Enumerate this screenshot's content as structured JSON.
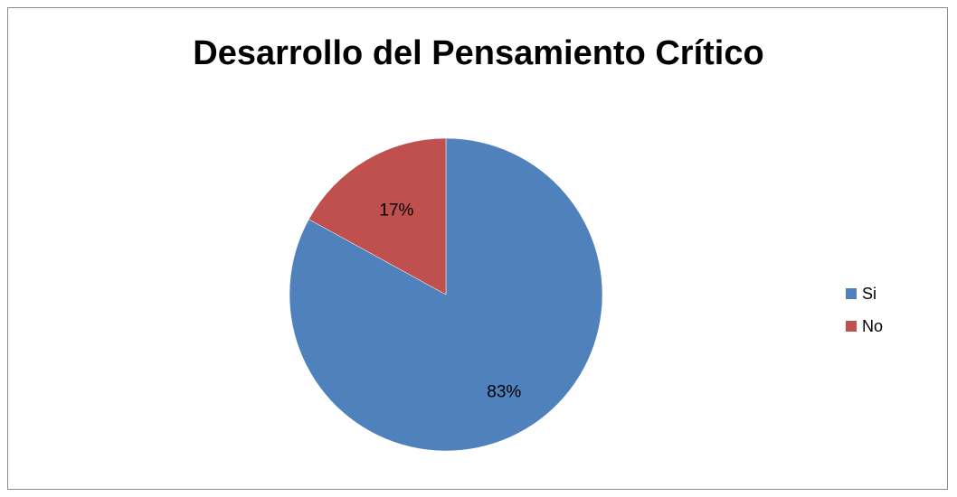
{
  "chart_data": {
    "type": "pie",
    "title": "Desarrollo del Pensamiento Crítico",
    "categories": [
      "Si",
      "No"
    ],
    "values": [
      83,
      17
    ],
    "labels": [
      "83%",
      "17%"
    ],
    "colors": [
      "#4F81BD",
      "#C0504D"
    ],
    "legend_position": "right"
  }
}
